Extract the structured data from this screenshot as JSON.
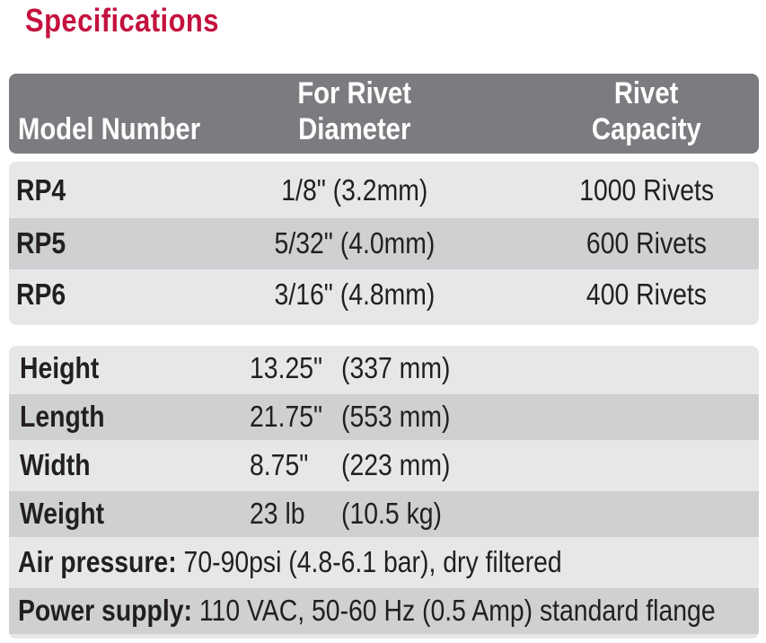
{
  "title": "Specifications",
  "header": {
    "model": "Model Number",
    "diameter_line1": "For Rivet",
    "diameter_line2": "Diameter",
    "capacity_line1": "Rivet",
    "capacity_line2": "Capacity"
  },
  "models": [
    {
      "model": "RP4",
      "diameter": "1/8\" (3.2mm)",
      "capacity": "1000 Rivets"
    },
    {
      "model": "RP5",
      "diameter": "5/32\" (4.0mm)",
      "capacity": "600 Rivets"
    },
    {
      "model": "RP6",
      "diameter": "3/16\" (4.8mm)",
      "capacity": "400 Rivets"
    }
  ],
  "dimensions": [
    {
      "label": "Height",
      "inches": "13.25\"",
      "mm": "(337 mm)"
    },
    {
      "label": "Length",
      "inches": "21.75\"",
      "mm": "(553 mm)"
    },
    {
      "label": "Width",
      "inches": "8.75\"",
      "mm": "(223 mm)"
    },
    {
      "label": "Weight",
      "inches": "23 lb",
      "mm": "(10.5 kg)"
    }
  ],
  "air": {
    "label": "Air pressure:",
    "value": " 70-90psi (4.8-6.1 bar), dry filtered"
  },
  "power": {
    "label": "Power supply:",
    "value": " 110 VAC, 50-60 Hz (0.5 Amp) standard flange"
  }
}
